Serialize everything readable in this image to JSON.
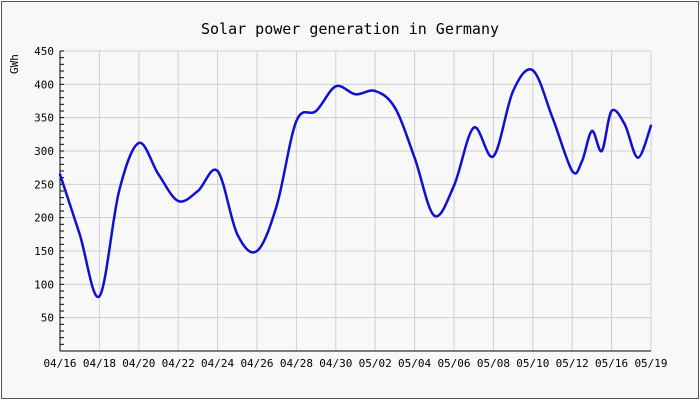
{
  "chart_data": {
    "type": "line",
    "title": "Solar power generation in Germany",
    "ylabel": "GWh",
    "xlabel": "",
    "ylim": [
      0,
      450
    ],
    "yticks": [
      50,
      100,
      150,
      200,
      250,
      300,
      350,
      400,
      450
    ],
    "xticks": [
      "04/16",
      "04/18",
      "04/20",
      "04/22",
      "04/24",
      "04/26",
      "04/28",
      "04/30",
      "05/02",
      "05/04",
      "05/06",
      "05/08",
      "05/10",
      "05/12",
      "05/16",
      "05/19"
    ],
    "grid": true,
    "line_color": "#1010d0",
    "series": [
      {
        "x": [
          "04/16",
          "04/17",
          "04/18",
          "04/19",
          "04/20",
          "04/21",
          "04/22",
          "04/23",
          "04/24",
          "04/25",
          "04/26",
          "04/27",
          "04/28",
          "04/29",
          "04/30",
          "05/01",
          "05/02",
          "05/03",
          "05/04",
          "05/05",
          "05/06",
          "05/07",
          "05/08",
          "05/09",
          "05/10",
          "05/11",
          "05/12",
          "05/13",
          "05/14",
          "05/15",
          "05/16",
          "05/17",
          "05/18",
          "05/19"
        ],
        "values": [
          265,
          175,
          82,
          240,
          312,
          265,
          225,
          240,
          270,
          175,
          150,
          218,
          345,
          360,
          397,
          385,
          390,
          365,
          290,
          203,
          248,
          335,
          292,
          390,
          421,
          350,
          270,
          285,
          330,
          300,
          360,
          340,
          290,
          338
        ]
      }
    ]
  }
}
